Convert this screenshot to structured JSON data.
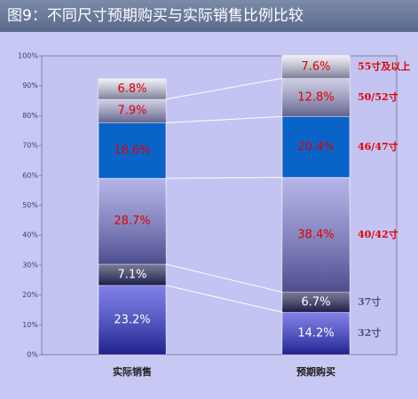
{
  "chart_data": {
    "type": "stacked_bar",
    "title": "图9：不同尺寸预期购买与实际销售比例比较",
    "categories": [
      "实际销售",
      "预期购买"
    ],
    "series": [
      {
        "name": "32寸",
        "color": "#3c3cdc",
        "label_color": "#ffffff",
        "legend_color": "#505080",
        "values": [
          23.2,
          14.2
        ],
        "value_labels": [
          "23.2%",
          "14.2%"
        ]
      },
      {
        "name": "37寸",
        "color": "#30305a",
        "label_color": "#ffffff",
        "legend_color": "#505080",
        "values": [
          7.1,
          6.7
        ],
        "value_labels": [
          "7.1%",
          "6.7%"
        ]
      },
      {
        "name": "40/42寸",
        "color": "#8c8cdc",
        "label_color": "#e00000",
        "legend_color": "#e00000",
        "values": [
          28.7,
          38.4
        ],
        "value_labels": [
          "28.7%",
          "38.4%"
        ]
      },
      {
        "name": "46/47寸",
        "color": "#0a64c8",
        "label_color": "#e00000",
        "legend_color": "#e00000",
        "values": [
          18.6,
          20.4
        ],
        "value_labels": [
          "18.6%",
          "20.4%"
        ]
      },
      {
        "name": "50/52寸",
        "color": "#b4b4d8",
        "label_color": "#e00000",
        "legend_color": "#e00000",
        "values": [
          7.9,
          12.8
        ],
        "value_labels": [
          "7.9%",
          "12.8%"
        ]
      },
      {
        "name": "55寸及以上",
        "color": "#e6e6f0",
        "label_color": "#e00000",
        "legend_color": "#e00000",
        "values": [
          6.8,
          7.6
        ],
        "value_labels": [
          "6.8%",
          "7.6%"
        ]
      }
    ],
    "ylim": [
      0,
      100
    ],
    "yticks": [
      {
        "value": 0,
        "label": "0%"
      },
      {
        "value": 10,
        "label": "10%"
      },
      {
        "value": 20,
        "label": "20%"
      },
      {
        "value": 30,
        "label": "30%"
      },
      {
        "value": 40,
        "label": "40%"
      },
      {
        "value": 50,
        "label": "50%"
      },
      {
        "value": 60,
        "label": "60%"
      },
      {
        "value": 70,
        "label": "70%"
      },
      {
        "value": 80,
        "label": "80%"
      },
      {
        "value": 90,
        "label": "90%"
      },
      {
        "value": 100,
        "label": "100%"
      }
    ]
  }
}
